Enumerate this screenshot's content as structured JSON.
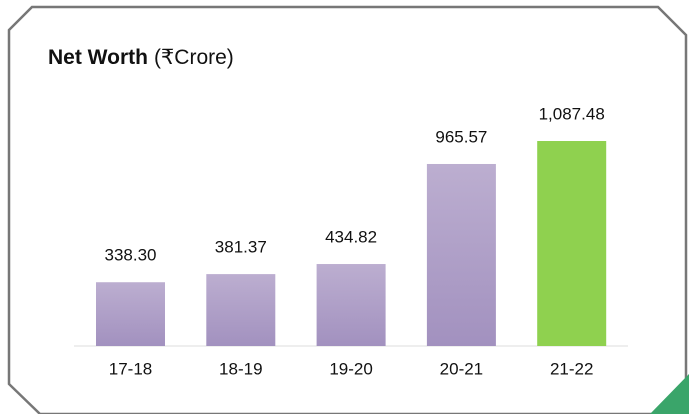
{
  "chart_data": {
    "type": "bar",
    "title": "Net Worth",
    "subtitle": "(₹Crore)",
    "categories": [
      "17-18",
      "18-19",
      "19-20",
      "20-21",
      "21-22"
    ],
    "values": [
      338.3,
      381.37,
      434.82,
      965.57,
      1087.48
    ],
    "value_labels": [
      "338.30",
      "381.37",
      "434.82",
      "965.57",
      "1,087.48"
    ],
    "colors": [
      "#ab9bc5",
      "#ab9bc5",
      "#ab9bc5",
      "#ab9bc5",
      "#8fd14f"
    ]
  }
}
